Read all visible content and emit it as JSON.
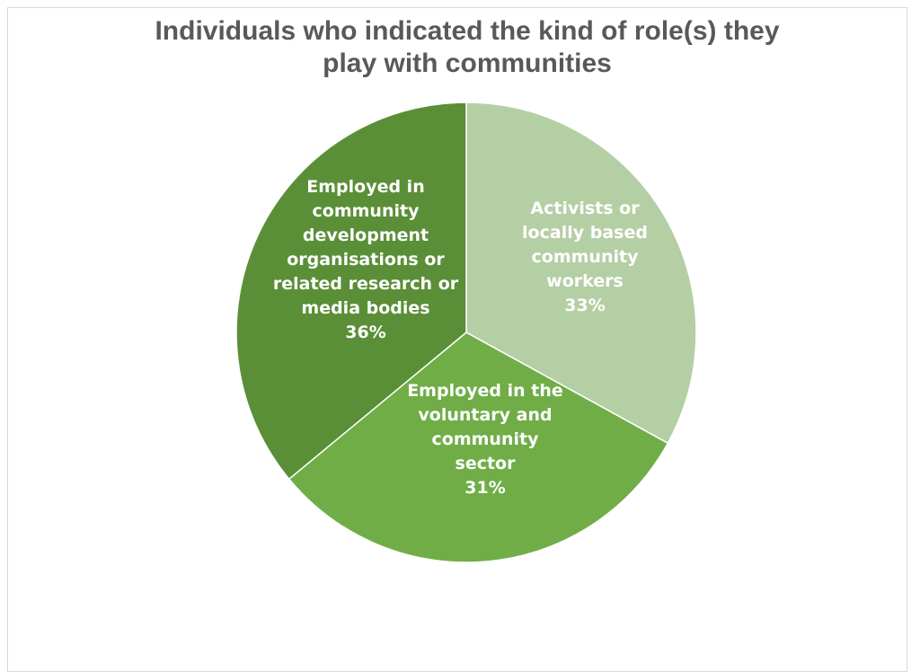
{
  "chart_data": {
    "type": "pie",
    "title_lines": [
      "Individuals who indicated the kind of role(s) they",
      "play with communities"
    ],
    "slices": [
      {
        "label_lines": [
          "Activists or",
          "locally based",
          "community",
          "workers"
        ],
        "percent_label": "33%",
        "value": 33,
        "color": "#b5cfa4"
      },
      {
        "label_lines": [
          "Employed in the",
          "voluntary and",
          "community",
          "sector"
        ],
        "percent_label": "31%",
        "value": 31,
        "color": "#70ad47"
      },
      {
        "label_lines": [
          "Employed in",
          "community",
          "development",
          "organisations or",
          "related research or",
          "media bodies"
        ],
        "percent_label": "36%",
        "value": 36,
        "color": "#5a8f37"
      }
    ],
    "legend": "none",
    "grid": false
  }
}
